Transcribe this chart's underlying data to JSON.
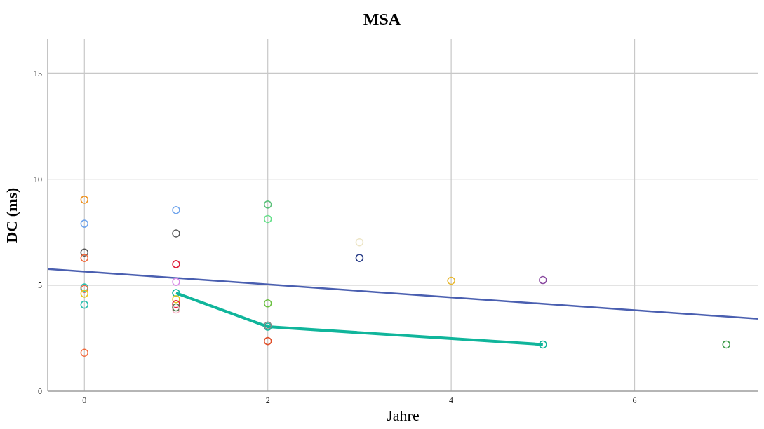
{
  "chart_data": {
    "type": "scatter",
    "title": "MSA",
    "xlabel": "Jahre",
    "ylabel": "DC (ms)",
    "xlim": [
      -0.4,
      7.35
    ],
    "xticks": [
      0,
      2,
      4,
      6
    ],
    "ylim": [
      0,
      16.6
    ],
    "yticks": [
      0,
      5,
      10,
      15
    ],
    "grid": true,
    "marker": "circle",
    "series": [
      {
        "type": "line",
        "color": "#4a5fb0",
        "marker": "none",
        "x": [
          -0.4,
          7.35
        ],
        "values": [
          5.76,
          3.41
        ]
      },
      {
        "type": "line",
        "color": "#10b59b",
        "marker": "circle",
        "x": [
          1,
          2,
          5
        ],
        "values": [
          4.63,
          3.04,
          2.2
        ]
      },
      {
        "color": "#f0921e",
        "x": [
          0
        ],
        "values": [
          9.03
        ]
      },
      {
        "color": "#6fa4ec",
        "x": [
          0,
          1
        ],
        "values": [
          7.9,
          8.54
        ]
      },
      {
        "color": "#555555",
        "x": [
          0,
          1
        ],
        "values": [
          6.54,
          7.44
        ]
      },
      {
        "color": "#f26a3c",
        "x": [
          0,
          0
        ],
        "values": [
          6.28,
          1.81
        ]
      },
      {
        "color": "#2cc0b0",
        "x": [
          0,
          0
        ],
        "values": [
          4.89,
          4.08
        ]
      },
      {
        "color": "#f06a4a",
        "x": [
          0
        ],
        "values": [
          4.82
        ]
      },
      {
        "color": "#e8c81e",
        "x": [
          0,
          1
        ],
        "values": [
          4.6,
          4.34
        ]
      },
      {
        "color": "#e0203c",
        "x": [
          1,
          1
        ],
        "values": [
          5.99,
          4.11
        ]
      },
      {
        "color": "#d98ae8",
        "x": [
          1
        ],
        "values": [
          5.15
        ]
      },
      {
        "color": "#557a50",
        "x": [
          1
        ],
        "values": [
          3.95
        ]
      },
      {
        "color": "#f5b8c8",
        "x": [
          1
        ],
        "values": [
          3.85
        ]
      },
      {
        "color": "#5bc07a",
        "x": [
          2
        ],
        "values": [
          8.8
        ]
      },
      {
        "color": "#66e08a",
        "x": [
          2
        ],
        "values": [
          8.12
        ]
      },
      {
        "color": "#6ac040",
        "x": [
          2
        ],
        "values": [
          4.14
        ]
      },
      {
        "color": "#888888",
        "x": [
          2
        ],
        "values": [
          3.1
        ]
      },
      {
        "color": "#e0502a",
        "x": [
          2
        ],
        "values": [
          2.36
        ]
      },
      {
        "color": "#ece4c4",
        "x": [
          3
        ],
        "values": [
          7.02
        ]
      },
      {
        "color": "#2a3e88",
        "x": [
          3
        ],
        "values": [
          6.28
        ]
      },
      {
        "color": "#e8b830",
        "x": [
          4
        ],
        "values": [
          5.21
        ]
      },
      {
        "color": "#8a4aa0",
        "x": [
          5
        ],
        "values": [
          5.24
        ]
      },
      {
        "color": "#3a9a48",
        "x": [
          7
        ],
        "values": [
          2.2
        ]
      }
    ]
  }
}
